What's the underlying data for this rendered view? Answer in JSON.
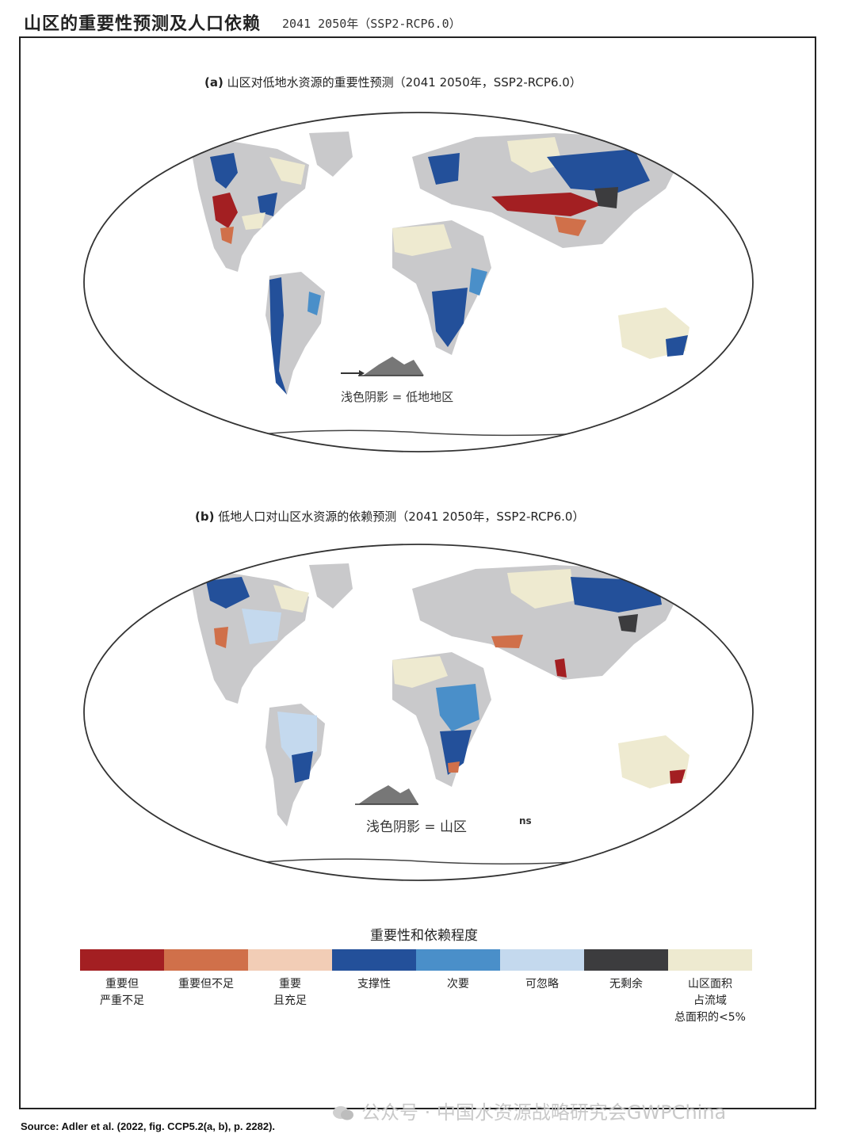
{
  "header": {
    "title": "山区的重要性预测及人口依赖",
    "subtitle": "2041 2050年（SSP2-RCP6.0）"
  },
  "map_a": {
    "label": "(a)",
    "title": "山区对低地水资源的重要性预测（2041 2050年，SSP2-RCP6.0）",
    "inset_note": "浅色阴影 = 低地地区"
  },
  "map_b": {
    "label": "(b)",
    "title": "低地人口对山区水资源的依赖预测（2041 2050年，SSP2-RCP6.0）",
    "inset_note": "浅色阴影 = 山区",
    "stray_text": "ns"
  },
  "legend": {
    "title": "重要性和依赖程度",
    "items": [
      {
        "lines": [
          "重要但",
          "严重不足"
        ],
        "color": "#a31f22"
      },
      {
        "lines": [
          "重要但不足"
        ],
        "color": "#d0704a"
      },
      {
        "lines": [
          "重要",
          "且充足"
        ],
        "color": "#f2cdb6"
      },
      {
        "lines": [
          "支撑性"
        ],
        "color": "#23509a"
      },
      {
        "lines": [
          "次要"
        ],
        "color": "#4a8fc9"
      },
      {
        "lines": [
          "可忽略"
        ],
        "color": "#c4d9ee"
      },
      {
        "lines": [
          "无剩余"
        ],
        "color": "#3c3c3e"
      },
      {
        "lines": [
          "山区面积",
          "占流域",
          "总面积的<5%"
        ],
        "color": "#eeead0"
      }
    ]
  },
  "source": "Source: Adler et al. (2022, fig. CCP5.2(a, b), p. 2282).",
  "watermark": "公众号 · 中国水资源战略研究会GWPChina"
}
